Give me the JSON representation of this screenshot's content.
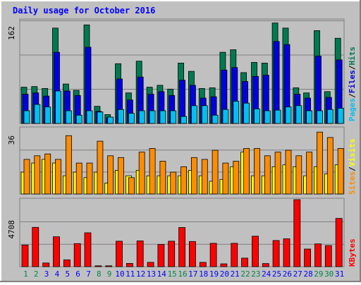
{
  "title": "Daily usage for October 2016",
  "colors": {
    "background": "#c0c0c0",
    "frame_dark": "#808080",
    "title": "#0000ff",
    "hits": "#007a50",
    "files": "#0000e0",
    "pages": "#00c0f0",
    "visits": "#ffff00",
    "sites": "#ff8c00",
    "kbytes": "#ff0000",
    "weekend_day": "#00864a",
    "weekday_day": "#0000ff"
  },
  "axis_labels": {
    "top": "162",
    "middle": "36",
    "bottom": "4708"
  },
  "legend": {
    "pages": "Pages",
    "files": "Files",
    "hits": "Hits",
    "sites": "Sites",
    "visits": "Visits",
    "kbytes": "KBytes",
    "sep": "/"
  },
  "chart_data": [
    {
      "type": "bar",
      "title": "Daily usage for October 2016",
      "categories": [
        "1",
        "2",
        "3",
        "4",
        "5",
        "6",
        "7",
        "8",
        "9",
        "10",
        "11",
        "12",
        "13",
        "14",
        "15",
        "16",
        "17",
        "18",
        "19",
        "20",
        "21",
        "22",
        "23",
        "24",
        "25",
        "26",
        "27",
        "28",
        "29",
        "30",
        "31"
      ],
      "weekend_days": [
        "1",
        "2",
        "8",
        "9",
        "15",
        "16",
        "22",
        "23",
        "29",
        "30"
      ],
      "ylim": [
        0,
        162
      ],
      "series": [
        {
          "name": "Hits",
          "values": [
            57,
            58,
            55,
            150,
            62,
            52,
            155,
            27,
            14,
            94,
            48,
            98,
            57,
            60,
            54,
            95,
            82,
            55,
            56,
            112,
            116,
            80,
            96,
            95,
            158,
            150,
            56,
            48,
            146,
            50,
            134
          ]
        },
        {
          "name": "Files",
          "values": [
            46,
            48,
            43,
            112,
            51,
            44,
            120,
            19,
            9,
            70,
            37,
            73,
            46,
            50,
            44,
            68,
            60,
            40,
            42,
            84,
            88,
            66,
            74,
            76,
            129,
            124,
            46,
            40,
            106,
            41,
            100
          ]
        },
        {
          "name": "Pages",
          "values": [
            20,
            30,
            26,
            51,
            20,
            13,
            20,
            18,
            10,
            22,
            16,
            20,
            20,
            20,
            20,
            11,
            28,
            28,
            13,
            22,
            35,
            32,
            23,
            20,
            21,
            26,
            28,
            20,
            20,
            22,
            24
          ]
        }
      ]
    },
    {
      "type": "bar",
      "ylim": [
        0,
        36
      ],
      "series": [
        {
          "name": "Visits",
          "values": [
            12,
            17,
            19,
            17,
            10,
            12,
            9,
            12,
            6,
            13,
            10,
            13,
            10,
            10,
            10,
            10,
            13,
            10,
            7,
            8,
            15,
            23,
            10,
            10,
            15,
            16,
            15,
            10,
            15,
            11,
            16
          ]
        },
        {
          "name": "Sites",
          "values": [
            19,
            21,
            22,
            19,
            32,
            17,
            17,
            29,
            21,
            20,
            9,
            23,
            25,
            18,
            12,
            15,
            20,
            19,
            24,
            17,
            18,
            25,
            25,
            21,
            23,
            24,
            21,
            23,
            34,
            31,
            25
          ]
        }
      ]
    },
    {
      "type": "bar",
      "ylim": [
        0,
        4708
      ],
      "series": [
        {
          "name": "KBytes",
          "values": [
            1520,
            2760,
            260,
            2100,
            480,
            1620,
            2380,
            60,
            60,
            1790,
            230,
            1810,
            300,
            1560,
            1790,
            2750,
            1770,
            300,
            1640,
            200,
            1640,
            600,
            2140,
            220,
            1840,
            1960,
            4708,
            1240,
            1600,
            1480,
            3390
          ]
        }
      ]
    }
  ]
}
